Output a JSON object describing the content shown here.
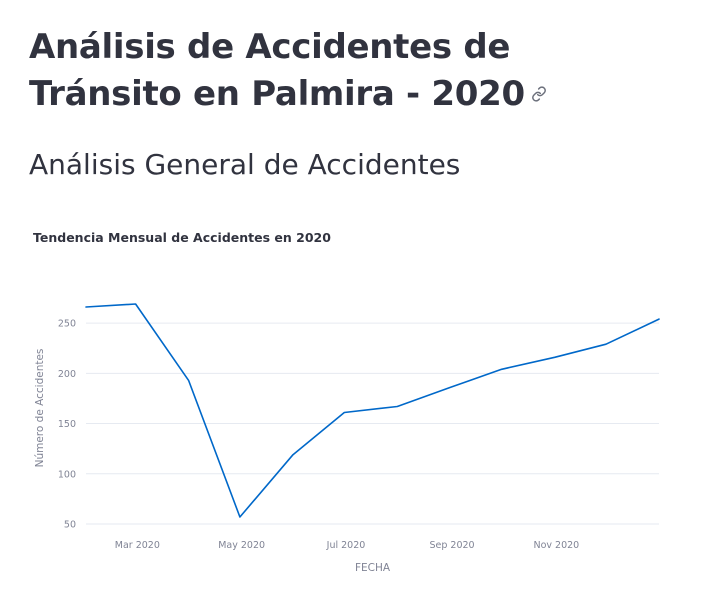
{
  "page": {
    "title": "Análisis de Accidentes de Tránsito en Palmira - 2020",
    "section_title": "Análisis General de Accidentes",
    "anchor_icon": "link-icon"
  },
  "chart_data": {
    "type": "line",
    "title": "Tendencia Mensual de Accidentes en 2020",
    "xlabel": "FECHA",
    "ylabel": "Número de Accidentes",
    "x": [
      "2020-01-31",
      "2020-02-29",
      "2020-03-31",
      "2020-04-30",
      "2020-05-31",
      "2020-06-30",
      "2020-07-31",
      "2020-08-31",
      "2020-09-30",
      "2020-10-31",
      "2020-11-30",
      "2020-12-31"
    ],
    "values": [
      266,
      269,
      193,
      57,
      119,
      161,
      167,
      186,
      204,
      216,
      229,
      254
    ],
    "x_ticks": [
      "Mar 2020",
      "May 2020",
      "Jul 2020",
      "Sep 2020",
      "Nov 2020"
    ],
    "y_ticks": [
      50,
      100,
      150,
      200,
      250
    ],
    "ylim": [
      50,
      275
    ],
    "grid": true,
    "line_color": "#0068c9",
    "grid_color": "#e6eaf1"
  }
}
